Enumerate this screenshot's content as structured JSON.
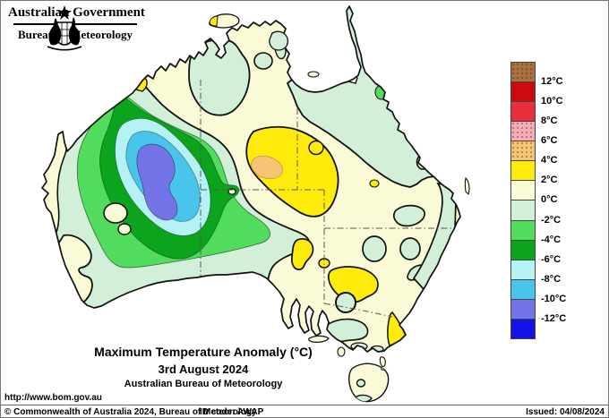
{
  "header": {
    "government": "Australian Government",
    "bureau": "Bureau of Meteorology"
  },
  "title": {
    "main": "Maximum Temperature Anomaly (°C)",
    "date": "3rd August 2024",
    "org": "Australian Bureau of Meteorology"
  },
  "legend": {
    "block_keys": [
      "brown",
      "darkred",
      "red",
      "pink",
      "orange",
      "yellow",
      "cream",
      "palegreen",
      "brightgreen",
      "darkgreen",
      "palecyan",
      "cyan",
      "violet",
      "blue"
    ],
    "labels": [
      "12°C",
      "10°C",
      "8°C",
      "6°C",
      "4°C",
      "2°C",
      "0°C",
      "-2°C",
      "-4°C",
      "-6°C",
      "-8°C",
      "-10°C",
      "-12°C"
    ]
  },
  "palette": {
    "brown": "#A8713F",
    "darkred": "#CC0A0F",
    "red": "#E8303C",
    "pink": "#F6ACB8",
    "orange": "#F6C475",
    "yellow": "#FFEB0B",
    "cream": "#FAFAD7",
    "palegreen": "#D2F0D8",
    "brightgreen": "#52DC5E",
    "darkgreen": "#0BA41C",
    "palecyan": "#B6F2F4",
    "cyan": "#49C5EC",
    "violet": "#7473E8",
    "blue": "#1512E6",
    "coast": "#101010",
    "border_dash": "#555555"
  },
  "map": {
    "region_type": "maximum temperature anomaly contours",
    "regions": [
      {
        "name": "wa-cold-core",
        "anomaly": "-12 to -10°C",
        "color_key": "violet"
      },
      {
        "name": "wa-cold-ring-1",
        "anomaly": "-10 to -8°C",
        "color_key": "cyan"
      },
      {
        "name": "wa-cold-ring-2",
        "anomaly": "-8 to -6°C",
        "color_key": "palecyan"
      },
      {
        "name": "wa-cold-ring-3",
        "anomaly": "-6 to -4°C",
        "color_key": "darkgreen"
      },
      {
        "name": "wa-cold-ring-4",
        "anomaly": "-4 to -2°C",
        "color_key": "brightgreen"
      },
      {
        "name": "wa-cool-region",
        "anomaly": "-2 to 0°C",
        "color_key": "palegreen"
      },
      {
        "name": "central-warm-blob",
        "anomaly": "2 to 4°C",
        "color_key": "yellow"
      },
      {
        "name": "central-warm-core",
        "anomaly": "4 to 6°C",
        "color_key": "orange"
      },
      {
        "name": "sa-nsw-warm-blobs",
        "anomaly": "2 to 4°C",
        "color_key": "yellow"
      },
      {
        "name": "gippsland-warm-patch",
        "anomaly": "2 to 4°C",
        "color_key": "yellow"
      },
      {
        "name": "qld-cool-region",
        "anomaly": "-2 to 0°C",
        "color_key": "palegreen"
      },
      {
        "name": "top-end-cool-patch",
        "anomaly": "-2 to 0°C",
        "color_key": "palegreen"
      },
      {
        "name": "cape-york-cool-spot",
        "anomaly": "-4 to -2°C",
        "color_key": "brightgreen"
      },
      {
        "name": "background-land",
        "anomaly": "0 to 2°C",
        "color_key": "cream"
      }
    ]
  },
  "footer": {
    "url": "http://www.bom.gov.au",
    "copyright": "© Commonwealth of Australia 2024, Bureau of Meteorology",
    "id_code": "ID code: AWAP",
    "issued": "Issued: 04/08/2024"
  }
}
